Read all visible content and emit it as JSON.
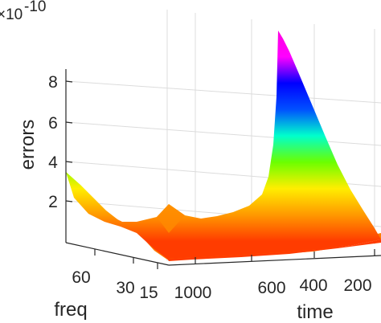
{
  "chart_data": {
    "type": "surface",
    "title": "",
    "zlabel": "errors",
    "xlabel": "time",
    "ylabel": "freq",
    "z_exponent_label": "×10",
    "z_exponent_power": "-10",
    "z_scale": "1e-10",
    "ztick_labels": [
      "2",
      "4",
      "6",
      "8"
    ],
    "ztick_values": [
      2,
      4,
      6,
      8
    ],
    "zlim": [
      0,
      10
    ],
    "xtick_labels": [
      "1000",
      "600",
      "400",
      "200"
    ],
    "xtick_values": [
      1000,
      600,
      400,
      200
    ],
    "xlim": [
      100,
      1000
    ],
    "ytick_labels": [
      "60",
      "30",
      "15"
    ],
    "ytick_values": [
      60,
      30,
      15
    ],
    "ylim": [
      15,
      75
    ],
    "grid": true,
    "colormap": [
      "#ff3c00",
      "#ff9900",
      "#ffee00",
      "#6bff00",
      "#00ffcc",
      "#0050ff",
      "#0000ff",
      "#ff00ff",
      "#ff00e0"
    ],
    "surface_profile_at_freq_15": {
      "time": [
        1000,
        800,
        600,
        500,
        400,
        300,
        250,
        200,
        150,
        100
      ],
      "errors": [
        0.1,
        0.2,
        0.3,
        0.4,
        0.5,
        0.6,
        0.8,
        1.0,
        1.5,
        2.5
      ]
    },
    "surface_profile_at_freq_75": {
      "time": [
        1000,
        850,
        700,
        600,
        500,
        400,
        350,
        300,
        250,
        200,
        150,
        100
      ],
      "errors": [
        3.5,
        1.3,
        1.5,
        1.3,
        1.6,
        2.3,
        2.7,
        4.0,
        6.0,
        8.4,
        10.0,
        1.5
      ]
    },
    "surface_profile_at_time_1000": {
      "freq": [
        15,
        30,
        45,
        60,
        75
      ],
      "errors": [
        0.1,
        0.4,
        1.2,
        2.0,
        3.5
      ]
    }
  }
}
